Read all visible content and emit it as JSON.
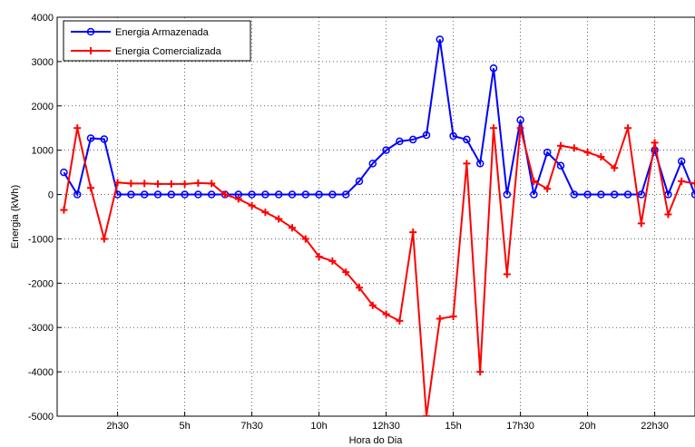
{
  "chart_data": {
    "type": "line",
    "title": "",
    "xlabel": "Hora do Dia",
    "ylabel": "Energia (kWh)",
    "xlim": [
      0.5,
      48
    ],
    "ylim": [
      -5000,
      4000
    ],
    "x_ticks": [
      5,
      10,
      15,
      20,
      25,
      30,
      35,
      40,
      45
    ],
    "x_tick_labels": [
      "2h30",
      "5h",
      "7h30",
      "10h",
      "12h30",
      "15h",
      "17h30",
      "20h",
      "22h30"
    ],
    "y_ticks": [
      -5000,
      -4000,
      -3000,
      -2000,
      -1000,
      0,
      1000,
      2000,
      3000,
      4000
    ],
    "y_tick_labels": [
      "-5000",
      "-4000",
      "-3000",
      "-2000",
      "-1000",
      "0",
      "1000",
      "2000",
      "3000",
      "4000"
    ],
    "grid": true,
    "legend_position": "top-left",
    "x": [
      1,
      2,
      3,
      4,
      5,
      6,
      7,
      8,
      9,
      10,
      11,
      12,
      13,
      14,
      15,
      16,
      17,
      18,
      19,
      20,
      21,
      22,
      23,
      24,
      25,
      26,
      27,
      28,
      29,
      30,
      31,
      32,
      33,
      34,
      35,
      36,
      37,
      38,
      39,
      40,
      41,
      42,
      43,
      44,
      45,
      46,
      47,
      48
    ],
    "series": [
      {
        "name": "Energia Armazenada",
        "color": "#0000ff",
        "marker": "circle",
        "values": [
          500,
          0,
          1270,
          1250,
          0,
          0,
          0,
          0,
          0,
          0,
          0,
          0,
          0,
          0,
          0,
          0,
          0,
          0,
          0,
          0,
          0,
          0,
          300,
          700,
          1000,
          1200,
          1240,
          1340,
          3500,
          1320,
          1240,
          700,
          2850,
          0,
          1680,
          0,
          950,
          650,
          0,
          0,
          0,
          0,
          0,
          0,
          1000,
          0,
          750,
          0
        ]
      },
      {
        "name": "Energia Comercializada",
        "color": "#ff0000",
        "marker": "plus",
        "values": [
          -350,
          1500,
          150,
          -1000,
          270,
          250,
          250,
          240,
          240,
          240,
          260,
          250,
          0,
          -100,
          -250,
          -400,
          -550,
          -750,
          -1000,
          -1400,
          -1500,
          -1750,
          -2100,
          -2500,
          -2700,
          -2850,
          -850,
          -5000,
          -2800,
          -2750,
          700,
          -4000,
          1500,
          -1800,
          1500,
          300,
          130,
          1100,
          1050,
          950,
          850,
          600,
          1500,
          -650,
          1170,
          -450,
          300,
          250
        ]
      }
    ]
  }
}
